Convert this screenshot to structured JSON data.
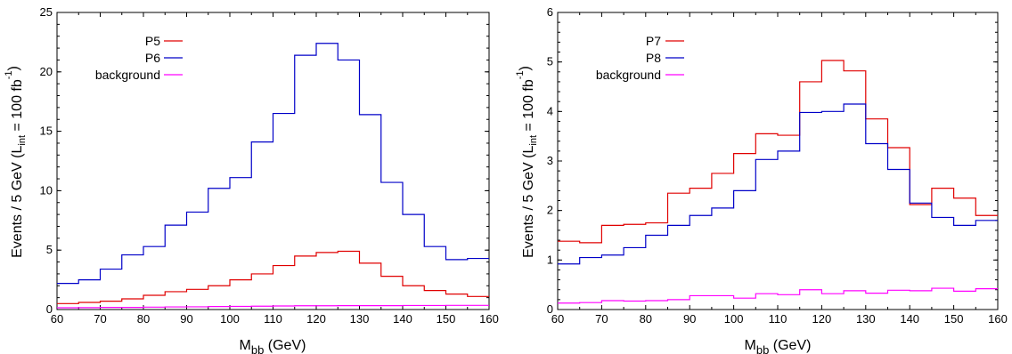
{
  "chart_data": [
    {
      "type": "line",
      "step": true,
      "title": "",
      "ylabel": {
        "main": "Events / 5 GeV",
        "lumi_prefix": "(L",
        "lumi_sub": "int",
        "lumi_mid": " = 100 fb",
        "lumi_sup": "-1",
        "lumi_suffix": ")"
      },
      "xlabel": {
        "main": "M",
        "sub": "bb",
        "unit": "(GeV)"
      },
      "xlim": [
        60,
        160
      ],
      "ylim": [
        0,
        25
      ],
      "xticks": [
        "60",
        "70",
        "80",
        "90",
        "100",
        "110",
        "120",
        "130",
        "140",
        "150",
        "160"
      ],
      "yticks": [
        "0",
        "5",
        "10",
        "15",
        "20",
        "25"
      ],
      "bin_edges": [
        60,
        65,
        70,
        75,
        80,
        85,
        90,
        95,
        100,
        105,
        110,
        115,
        120,
        125,
        130,
        135,
        140,
        145,
        150,
        155,
        160
      ],
      "legend_position": "top-left",
      "series": [
        {
          "name": "P5",
          "color": "#e00000",
          "values": [
            0.5,
            0.6,
            0.7,
            0.9,
            1.2,
            1.5,
            1.7,
            2.0,
            2.5,
            3.0,
            3.7,
            4.5,
            4.8,
            4.9,
            3.9,
            2.8,
            2.0,
            1.6,
            1.3,
            1.1
          ]
        },
        {
          "name": "P6",
          "color": "#0000c8",
          "values": [
            2.2,
            2.5,
            3.4,
            4.6,
            5.3,
            7.1,
            8.2,
            10.2,
            11.1,
            14.1,
            16.5,
            21.4,
            22.4,
            21.0,
            16.4,
            10.7,
            8.0,
            5.3,
            4.2,
            4.3
          ]
        },
        {
          "name": "background",
          "color": "#ff00ff",
          "values": [
            0.15,
            0.16,
            0.18,
            0.18,
            0.2,
            0.22,
            0.23,
            0.25,
            0.26,
            0.28,
            0.3,
            0.32,
            0.32,
            0.33,
            0.33,
            0.33,
            0.34,
            0.34,
            0.35,
            0.35
          ]
        }
      ]
    },
    {
      "type": "line",
      "step": true,
      "title": "",
      "ylabel": {
        "main": "Events / 5 GeV",
        "lumi_prefix": "(L",
        "lumi_sub": "int",
        "lumi_mid": " = 100 fb",
        "lumi_sup": "-1",
        "lumi_suffix": ")"
      },
      "xlabel": {
        "main": "M",
        "sub": "bb",
        "unit": "(GeV)"
      },
      "xlim": [
        60,
        160
      ],
      "ylim": [
        0,
        6
      ],
      "xticks": [
        "60",
        "70",
        "80",
        "90",
        "100",
        "110",
        "120",
        "130",
        "140",
        "150",
        "160"
      ],
      "yticks": [
        "0",
        "1",
        "2",
        "3",
        "4",
        "5",
        "6"
      ],
      "bin_edges": [
        60,
        65,
        70,
        75,
        80,
        85,
        90,
        95,
        100,
        105,
        110,
        115,
        120,
        125,
        130,
        135,
        140,
        145,
        150,
        155,
        160
      ],
      "legend_position": "top-left",
      "series": [
        {
          "name": "P7",
          "color": "#e00000",
          "values": [
            1.38,
            1.35,
            1.7,
            1.72,
            1.75,
            2.35,
            2.45,
            2.75,
            3.15,
            3.55,
            3.52,
            4.6,
            5.03,
            4.82,
            3.85,
            3.27,
            2.12,
            2.45,
            2.25,
            1.9
          ]
        },
        {
          "name": "P8",
          "color": "#0000c8",
          "values": [
            0.92,
            1.05,
            1.1,
            1.25,
            1.5,
            1.7,
            1.9,
            2.05,
            2.4,
            3.03,
            3.2,
            3.98,
            4.0,
            4.15,
            3.35,
            2.83,
            2.15,
            1.86,
            1.7,
            1.8
          ]
        },
        {
          "name": "background",
          "color": "#ff00ff",
          "values": [
            0.13,
            0.14,
            0.18,
            0.17,
            0.18,
            0.2,
            0.28,
            0.28,
            0.23,
            0.32,
            0.3,
            0.4,
            0.32,
            0.38,
            0.33,
            0.39,
            0.38,
            0.43,
            0.37,
            0.42
          ]
        }
      ]
    }
  ]
}
